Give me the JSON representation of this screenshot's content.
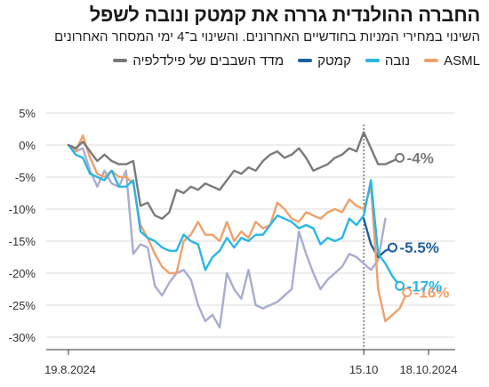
{
  "header": {
    "title": "החברה ההולנדית גררה את קמטק ונובה לשפל",
    "subtitle": "השינוי במחירי המניות בחודשיים האחרונים. והשינוי ב־4 ימי המסחר האחרונים"
  },
  "colors": {
    "sox": "#7a7a7a",
    "philadelphia": "#1f5fa0",
    "camtek": "#29b6e6",
    "nova": "#f0a06a",
    "asml": "#a9acd0"
  },
  "chart_data": {
    "type": "line",
    "x_labels": [
      "19.8.2024",
      "15.10",
      "18.10.2024"
    ],
    "ylim": [
      -30,
      5
    ],
    "yticks": [
      5,
      0,
      -5,
      -10,
      -15,
      -20,
      -25,
      -30
    ],
    "ytick_labels": [
      "5%",
      "0%",
      "-5%",
      "-10%",
      "-15%",
      "-20%",
      "-25%",
      "-30%"
    ],
    "divider_index": 41,
    "legend": [
      "מדד השבבים של פילדלפיה",
      "קמטק",
      "נובה",
      "ASML"
    ],
    "series": [
      {
        "name": "ASML",
        "color": "#a9acd0",
        "values": [
          0,
          -1,
          -0.5,
          -4,
          -6.5,
          -4,
          -6,
          -6.5,
          -4,
          -17,
          -15.5,
          -16,
          -22,
          -23.5,
          -21.5,
          -20,
          -19.5,
          -21,
          -25,
          -27.5,
          -26.5,
          -28.5,
          -20,
          -22.5,
          -24,
          -19.5,
          -25,
          -25.5,
          -25,
          -24.5,
          -23.5,
          -22.5,
          -13.5,
          -17,
          -20,
          -22.5,
          -21,
          -20,
          -19,
          -17,
          -17.5,
          -18.5,
          -19.5,
          -18,
          -11.5
        ]
      },
      {
        "name": "מדד השבבים של פילדלפיה",
        "color": "#1f5fa0",
        "values": [
          -11.5,
          -15.5,
          -17.5,
          -16.5,
          -16
        ],
        "start_index": 41,
        "end_label": "-5.5%"
      },
      {
        "name": "נובה",
        "color": "#f0a06a",
        "values": [
          0,
          -1,
          1.5,
          -2,
          -4.5,
          -5,
          -4,
          -5,
          -5,
          -6,
          -12.5,
          -14.5,
          -17,
          -19,
          -20,
          -20,
          -15,
          -14,
          -12,
          -14,
          -14,
          -15,
          -12,
          -15,
          -13.5,
          -14.5,
          -12,
          -13,
          -12.5,
          -9,
          -10,
          -11.5,
          -12,
          -10.5,
          -11,
          -11.5,
          -10.5,
          -10,
          -10.5,
          -8.5,
          -9.5,
          -10,
          -6.5,
          -22.5,
          -27.5,
          -26.5,
          -25.5,
          -23
        ],
        "end_label": "-16%"
      },
      {
        "name": "קמטק",
        "color": "#29b6e6",
        "values": [
          0,
          -1.5,
          -2,
          -4.5,
          -5,
          -5.5,
          -4,
          -6.5,
          -6.5,
          -5.5,
          -13.5,
          -14.5,
          -15,
          -16,
          -16.5,
          -16.5,
          -14,
          -15,
          -15.5,
          -19.5,
          -17.5,
          -16.5,
          -14.5,
          -16,
          -14.5,
          -15,
          -14,
          -14,
          -12.5,
          -11,
          -11.5,
          -12,
          -13,
          -12.5,
          -13,
          -15.5,
          -14.5,
          -15,
          -14.5,
          -11.5,
          -12.5,
          -11,
          -5.5,
          -17,
          -18.5,
          -20.5,
          -22
        ],
        "end_label": "-17%"
      },
      {
        "name": "SOX",
        "color": "#7a7a7a",
        "values": [
          0,
          -0.5,
          0.5,
          -1,
          -2.5,
          -1.5,
          -2.5,
          -3,
          -3,
          -2.5,
          -9.5,
          -9,
          -11,
          -11.5,
          -10.5,
          -7,
          -7.5,
          -6.5,
          -7,
          -6,
          -6.5,
          -7,
          -5.5,
          -4,
          -4.5,
          -3.5,
          -4,
          -2.5,
          -1.5,
          -1,
          -2,
          -1.5,
          -0.5,
          -2,
          -4,
          -3.5,
          -3,
          -2,
          -1.5,
          -0.5,
          -1,
          2,
          -0.5,
          -3,
          -3,
          -2.5,
          -2
        ],
        "end_label": "-4%"
      }
    ]
  }
}
